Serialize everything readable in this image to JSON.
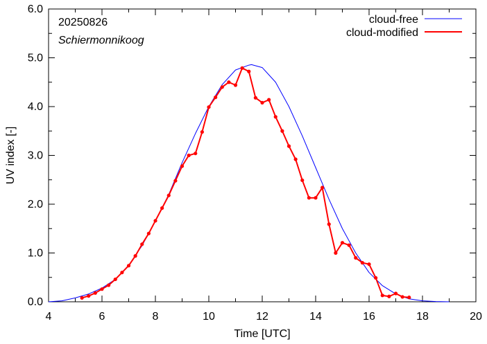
{
  "chart_data": {
    "type": "line",
    "xlabel": "Time  [UTC]",
    "ylabel": "UV index  [-]",
    "xlim": [
      4,
      20
    ],
    "ylim": [
      0,
      6
    ],
    "x_ticks": [
      4,
      6,
      8,
      10,
      12,
      14,
      16,
      18,
      20
    ],
    "x_tick_labels": [
      "4",
      "6",
      "8",
      "10",
      "12",
      "14",
      "16",
      "18",
      "20"
    ],
    "y_ticks": [
      0,
      1,
      2,
      3,
      4,
      5,
      6
    ],
    "y_tick_labels": [
      "0.0",
      "1.0",
      "2.0",
      "3.0",
      "4.0",
      "5.0",
      "6.0"
    ],
    "annotations": [
      "20250826",
      "Schiermonnikoog"
    ],
    "legend_position": "top-right",
    "series": [
      {
        "name": "cloud-free",
        "color": "#0000ff",
        "markers": false,
        "x": [
          4.0,
          4.5,
          5.0,
          5.5,
          6.0,
          6.5,
          7.0,
          7.5,
          8.0,
          8.5,
          9.0,
          9.5,
          10.0,
          10.5,
          11.0,
          11.5,
          11.6,
          12.0,
          12.5,
          13.0,
          13.5,
          14.0,
          14.5,
          15.0,
          15.5,
          16.0,
          16.5,
          17.0,
          17.5,
          18.0,
          18.5,
          19.0
        ],
        "y": [
          0.0,
          0.02,
          0.08,
          0.16,
          0.28,
          0.46,
          0.75,
          1.15,
          1.65,
          2.2,
          2.85,
          3.45,
          4.0,
          4.45,
          4.75,
          4.85,
          4.86,
          4.8,
          4.5,
          4.0,
          3.4,
          2.75,
          2.1,
          1.5,
          1.0,
          0.6,
          0.33,
          0.16,
          0.06,
          0.02,
          0.005,
          0.0
        ]
      },
      {
        "name": "cloud-modified",
        "color": "#ff0000",
        "markers": true,
        "x": [
          5.25,
          5.5,
          5.75,
          6.0,
          6.25,
          6.5,
          6.75,
          7.0,
          7.25,
          7.5,
          7.75,
          8.0,
          8.25,
          8.5,
          8.75,
          9.0,
          9.25,
          9.5,
          9.75,
          10.0,
          10.25,
          10.5,
          10.75,
          11.0,
          11.25,
          11.5,
          11.75,
          12.0,
          12.25,
          12.5,
          12.75,
          13.0,
          13.25,
          13.5,
          13.75,
          14.0,
          14.25,
          14.5,
          14.75,
          15.0,
          15.25,
          15.5,
          15.75,
          16.0,
          16.25,
          16.5,
          16.75,
          17.0,
          17.25,
          17.5
        ],
        "y": [
          0.08,
          0.12,
          0.18,
          0.26,
          0.34,
          0.46,
          0.6,
          0.74,
          0.94,
          1.18,
          1.4,
          1.66,
          1.92,
          2.18,
          2.48,
          2.78,
          3.0,
          3.04,
          3.48,
          3.99,
          4.19,
          4.4,
          4.5,
          4.44,
          4.79,
          4.72,
          4.18,
          4.08,
          4.14,
          3.79,
          3.5,
          3.19,
          2.92,
          2.49,
          2.13,
          2.13,
          2.34,
          1.59,
          1.0,
          1.21,
          1.16,
          0.9,
          0.8,
          0.77,
          0.49,
          0.13,
          0.11,
          0.17,
          0.1,
          0.09
        ]
      }
    ]
  }
}
